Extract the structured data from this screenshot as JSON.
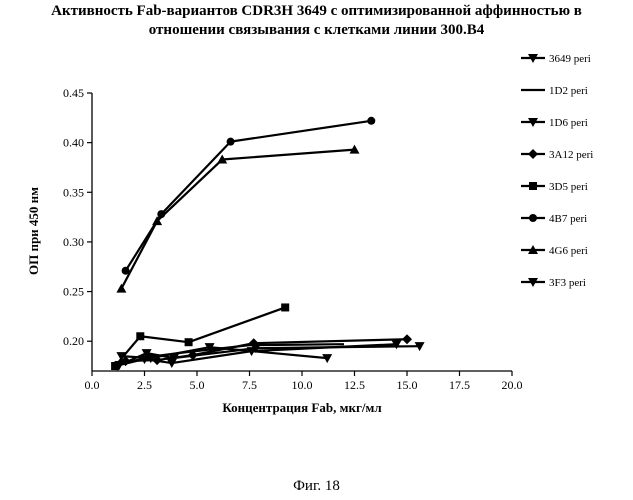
{
  "title_lines": [
    "Активность Fab-вариантов CDR3H 3649 с оптимизированной аффинностью в",
    "отношении связывания с клетками линии 300.B4"
  ],
  "figure_caption": "Фиг. 18",
  "chart_data": {
    "type": "line",
    "xlabel": "Концентрация Fab, мкг/мл",
    "ylabel": "ОП при 450 нм",
    "xlim": [
      0,
      20
    ],
    "ylim": [
      0.17,
      0.45
    ],
    "xticks": [
      "0.0",
      "2.5",
      "5.0",
      "7.5",
      "10.0",
      "12.5",
      "15.0",
      "17.5",
      "20.0"
    ],
    "yticks": [
      "0.20",
      "0.25",
      "0.30",
      "0.35",
      "0.40",
      "0.45"
    ],
    "xtick_values": [
      0,
      2.5,
      5,
      7.5,
      10,
      12.5,
      15,
      17.5,
      20
    ],
    "ytick_values": [
      0.2,
      0.25,
      0.3,
      0.35,
      0.4,
      0.45
    ],
    "grid": false,
    "legend_position": "right",
    "series": [
      {
        "name": "3649 peri",
        "marker": "triangle-down",
        "x": [
          1.2,
          2.6,
          3.9,
          7.8,
          15.6
        ],
        "y": [
          0.175,
          0.188,
          0.183,
          0.193,
          0.195
        ]
      },
      {
        "name": "1D2 peri",
        "marker": "none",
        "x": [
          1.5,
          3.0,
          4.5,
          7.5,
          12.0
        ],
        "y": [
          0.178,
          0.185,
          0.189,
          0.196,
          0.197
        ]
      },
      {
        "name": "1D6 peri",
        "marker": "triangle-down",
        "x": [
          1.3,
          2.5,
          3.8,
          7.6,
          14.5
        ],
        "y": [
          0.176,
          0.182,
          0.178,
          0.19,
          0.197
        ]
      },
      {
        "name": "3A12 peri",
        "marker": "diamond",
        "x": [
          1.6,
          3.1,
          4.8,
          7.7,
          15.0
        ],
        "y": [
          0.18,
          0.181,
          0.186,
          0.198,
          0.202
        ]
      },
      {
        "name": "3D5 peri",
        "marker": "square",
        "x": [
          1.1,
          2.3,
          4.6,
          9.2
        ],
        "y": [
          0.175,
          0.205,
          0.199,
          0.234
        ]
      },
      {
        "name": "4B7 peri",
        "marker": "circle",
        "x": [
          1.6,
          3.3,
          6.6,
          13.3
        ],
        "y": [
          0.271,
          0.328,
          0.401,
          0.422
        ]
      },
      {
        "name": "4G6 peri",
        "marker": "triangle-up",
        "x": [
          1.4,
          3.1,
          6.2,
          12.5
        ],
        "y": [
          0.253,
          0.321,
          0.383,
          0.393
        ]
      },
      {
        "name": "3F3 peri",
        "marker": "triangle-down",
        "x": [
          1.4,
          2.8,
          5.6,
          11.2
        ],
        "y": [
          0.185,
          0.183,
          0.194,
          0.183
        ]
      }
    ]
  }
}
